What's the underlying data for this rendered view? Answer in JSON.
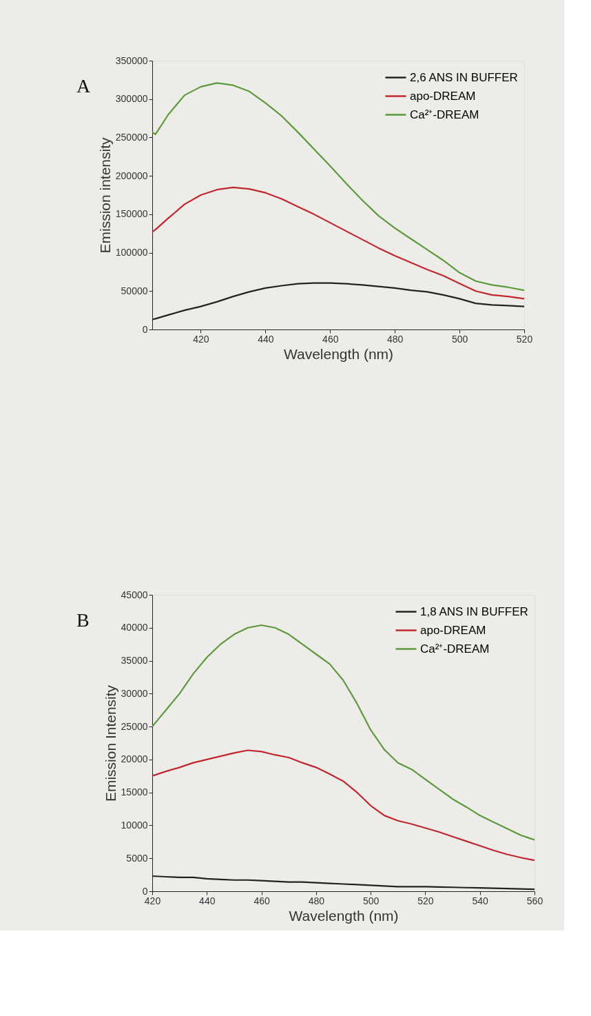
{
  "chart_data": [
    {
      "type": "line",
      "xlabel": "Wavelength (nm)",
      "ylabel": "Emission intensity",
      "annotations": [
        "A"
      ],
      "legend": "top right",
      "grid": false,
      "marker": "none",
      "line_style": "solid",
      "xlim": [
        405,
        520
      ],
      "xticks": [
        420,
        440,
        460,
        480,
        500,
        520
      ],
      "ylim": [
        0,
        350000
      ],
      "yticks": [
        0,
        50000,
        100000,
        150000,
        200000,
        250000,
        300000,
        350000
      ],
      "x": [
        405,
        406,
        410,
        415,
        420,
        425,
        430,
        435,
        440,
        445,
        450,
        455,
        460,
        465,
        470,
        475,
        480,
        485,
        490,
        495,
        500,
        505,
        510,
        515,
        520
      ],
      "series": [
        {
          "name": "2,6 ANS IN BUFFER",
          "color": "#222222",
          "values": [
            13000,
            14000,
            19000,
            25000,
            30000,
            36000,
            43000,
            49000,
            54000,
            57000,
            59500,
            60500,
            60500,
            59500,
            58000,
            56000,
            54000,
            51000,
            49000,
            45000,
            40000,
            34000,
            32000,
            31000,
            30000
          ]
        },
        {
          "name": "apo-DREAM",
          "color": "#c0272d",
          "values": [
            127000,
            130000,
            145000,
            163000,
            175000,
            182000,
            185000,
            183000,
            178000,
            170000,
            160000,
            150000,
            139000,
            128000,
            117000,
            106000,
            96000,
            87000,
            78000,
            70000,
            60000,
            50000,
            45000,
            43000,
            40000
          ]
        },
        {
          "name": "Ca²⁺-DREAM",
          "color": "#5a9a3c",
          "values": [
            257000,
            254000,
            280000,
            305000,
            316000,
            321000,
            318000,
            310000,
            295000,
            278000,
            257000,
            235000,
            213000,
            190000,
            168000,
            148000,
            132000,
            118000,
            104000,
            90000,
            74000,
            63000,
            58000,
            55000,
            51000
          ]
        }
      ]
    },
    {
      "type": "line",
      "xlabel": "Wavelength (nm)",
      "ylabel": "Emission Intensity",
      "annotations": [
        "B"
      ],
      "legend": "top right",
      "grid": false,
      "marker": "none",
      "line_style": "solid",
      "xlim": [
        420,
        560
      ],
      "xticks": [
        420,
        440,
        460,
        480,
        500,
        520,
        540,
        560
      ],
      "ylim": [
        0,
        45000
      ],
      "yticks": [
        0,
        5000,
        10000,
        15000,
        20000,
        25000,
        30000,
        35000,
        40000,
        45000
      ],
      "x": [
        420,
        425,
        430,
        435,
        440,
        445,
        450,
        455,
        460,
        465,
        470,
        475,
        480,
        485,
        490,
        495,
        500,
        505,
        510,
        515,
        520,
        525,
        530,
        535,
        540,
        545,
        550,
        555,
        560
      ],
      "series": [
        {
          "name": "1,8 ANS IN BUFFER",
          "color": "#222222",
          "values": [
            2300,
            2200,
            2100,
            2100,
            1900,
            1800,
            1700,
            1700,
            1600,
            1500,
            1400,
            1400,
            1300,
            1200,
            1100,
            1000,
            900,
            800,
            700,
            700,
            700,
            650,
            600,
            550,
            500,
            450,
            400,
            350,
            300
          ]
        },
        {
          "name": "apo-DREAM",
          "color": "#c0272d",
          "values": [
            17500,
            18200,
            18800,
            19500,
            20000,
            20500,
            21000,
            21400,
            21200,
            20700,
            20300,
            19500,
            18800,
            17800,
            16700,
            15000,
            13000,
            11500,
            10700,
            10200,
            9600,
            9000,
            8300,
            7600,
            6900,
            6200,
            5600,
            5100,
            4700
          ]
        },
        {
          "name": "Ca²⁺-DREAM",
          "color": "#5a9a3c",
          "values": [
            25000,
            27500,
            30000,
            33000,
            35500,
            37500,
            39000,
            40000,
            40400,
            40000,
            39000,
            37500,
            36000,
            34500,
            32000,
            28500,
            24500,
            21500,
            19500,
            18500,
            17000,
            15500,
            14000,
            12800,
            11500,
            10500,
            9500,
            8500,
            7800
          ]
        }
      ]
    }
  ]
}
